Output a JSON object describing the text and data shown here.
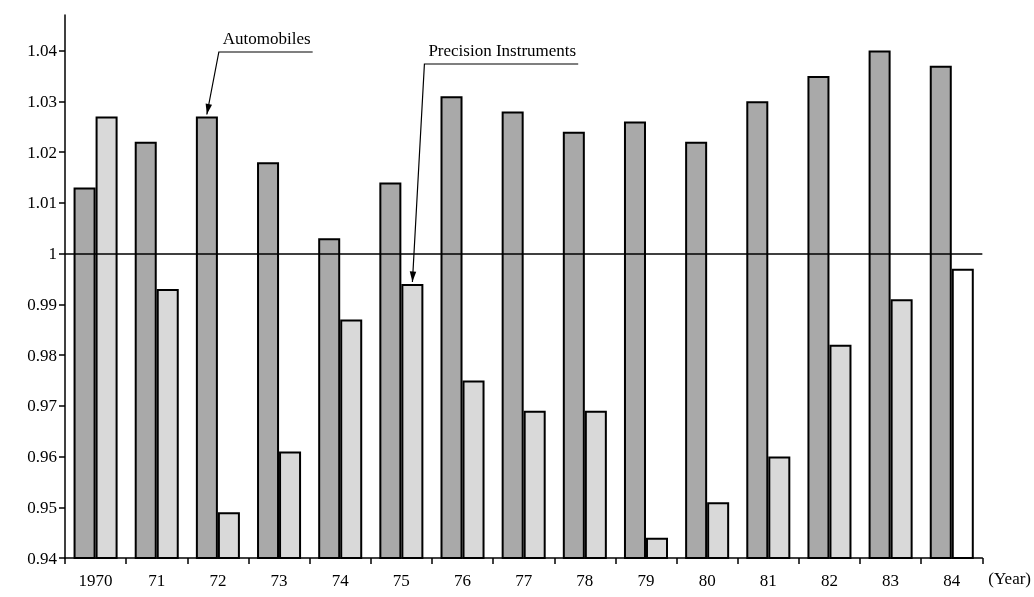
{
  "chart_data": {
    "type": "bar",
    "categories": [
      "1970",
      "71",
      "72",
      "73",
      "74",
      "75",
      "76",
      "77",
      "78",
      "79",
      "80",
      "81",
      "82",
      "83",
      "84"
    ],
    "xlabel": "(Year)",
    "series": [
      {
        "name": "Automobiles",
        "color": "#a9a9a9",
        "values": [
          1.013,
          1.022,
          1.027,
          1.018,
          1.003,
          1.014,
          1.031,
          1.028,
          1.024,
          1.026,
          1.022,
          1.03,
          1.035,
          1.04,
          1.037
        ]
      },
      {
        "name": "Precision Instruments",
        "color": "#d9d9d9",
        "colors": [
          "#d9d9d9",
          "#d9d9d9",
          "#d9d9d9",
          "#d9d9d9",
          "#d9d9d9",
          "#d9d9d9",
          "#d9d9d9",
          "#d9d9d9",
          "#d9d9d9",
          "#d9d9d9",
          "#d9d9d9",
          "#d9d9d9",
          "#d9d9d9",
          "#d9d9d9",
          "#ffffff"
        ],
        "values": [
          1.027,
          0.993,
          0.949,
          0.961,
          0.987,
          0.994,
          0.975,
          0.969,
          0.969,
          0.944,
          0.951,
          0.96,
          0.982,
          0.991,
          0.997
        ]
      }
    ],
    "ylim": [
      0.94,
      1.047
    ],
    "yticks": [
      0.94,
      0.95,
      0.96,
      0.97,
      0.98,
      0.99,
      1,
      1.01,
      1.02,
      1.03,
      1.04
    ],
    "ref_lines": [
      {
        "axis": "y",
        "value": 1,
        "label": null
      }
    ],
    "grid": false
  }
}
